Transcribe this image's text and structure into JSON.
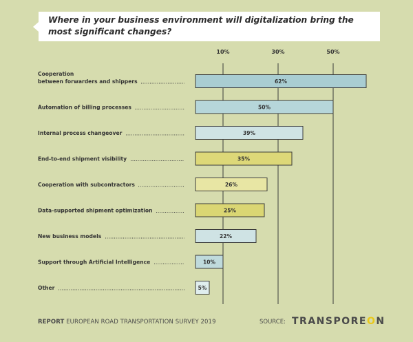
{
  "title": "Where in your business environment will digitalization bring the most significant changes?",
  "chart_data": {
    "type": "bar",
    "orientation": "horizontal",
    "xticks": [
      "10%",
      "30%",
      "50%"
    ],
    "xtick_values": [
      10,
      30,
      50
    ],
    "xlim": [
      0,
      62
    ],
    "grid": true,
    "categories": [
      "Cooperation between forwarders and shippers",
      "Automation of billing processes",
      "Internal process changeover",
      "End-to-end shipment visibility",
      "Cooperation with subcontractors",
      "Data-supported shipment optimization",
      "New business models",
      "Support through Artificial Intelligence",
      "Other"
    ],
    "category_label_lines": [
      [
        "Cooperation",
        "between forwarders and shippers"
      ],
      [
        "Automation of billing processes"
      ],
      [
        "Internal process changeover"
      ],
      [
        "End-to-end shipment visibility"
      ],
      [
        "Cooperation with subcontractors"
      ],
      [
        "Data-supported shipment optimization"
      ],
      [
        "New business models"
      ],
      [
        "Support through Artificial Intelligence"
      ],
      [
        "Other"
      ]
    ],
    "values": [
      62,
      50,
      39,
      35,
      26,
      25,
      22,
      10,
      5
    ],
    "value_labels": [
      "62%",
      "50%",
      "39%",
      "35%",
      "26%",
      "25%",
      "22%",
      "10%",
      "5%"
    ],
    "bar_colors": [
      "#a9cdd2",
      "#b6d6da",
      "#cfe3e4",
      "#ddd878",
      "#e8e6a4",
      "#dad673",
      "#cfe3e4",
      "#bfdadc",
      "#e0eeee"
    ]
  },
  "footer": {
    "report_bold": "REPORT",
    "report_text": " EUROPEAN ROAD TRANSPORTATION SURVEY 2019",
    "source_label": "SOURCE:",
    "logo_main": "TRANSPORE",
    "logo_accent": "O",
    "logo_end": "N"
  },
  "colors": {
    "background": "#d6dcae",
    "gridline": "#3b3b3b",
    "bar_stroke": "#3b3b3b",
    "logo_accent": "#e9c81a"
  }
}
